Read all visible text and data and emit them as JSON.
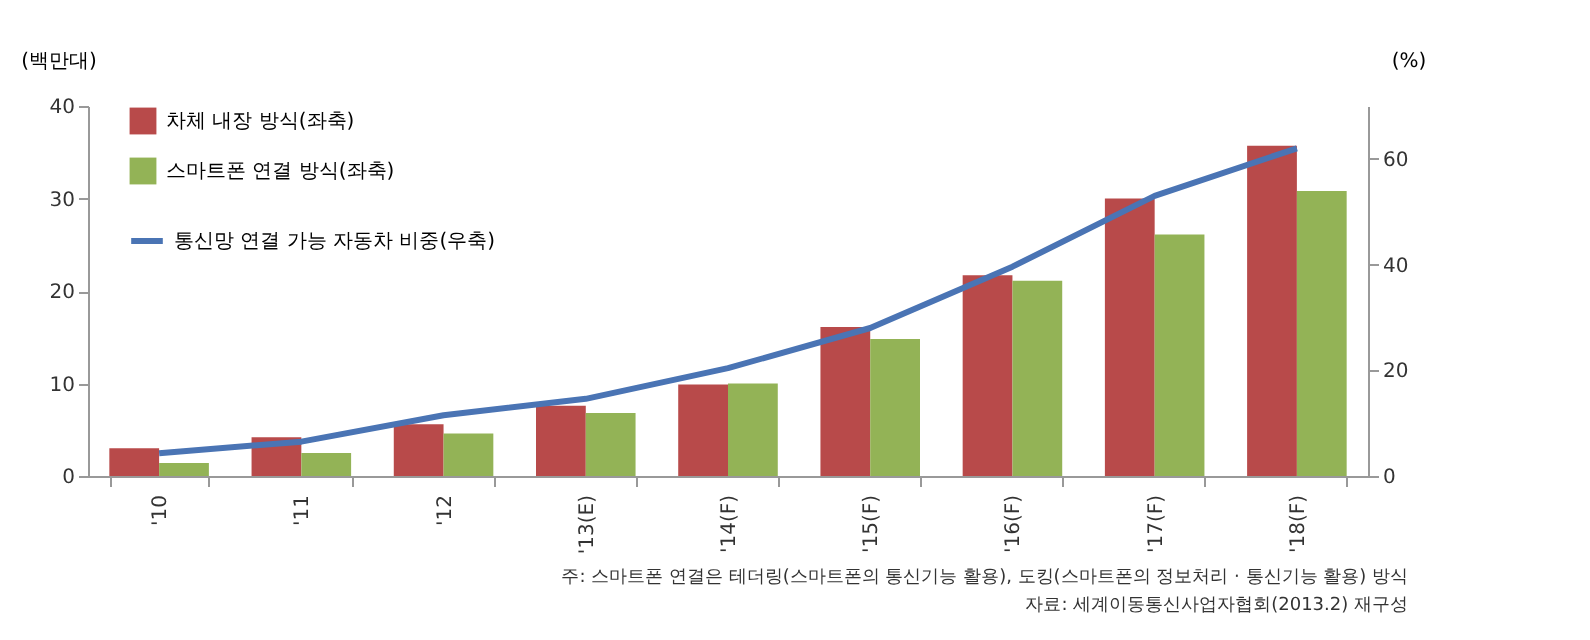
{
  "chart_data": {
    "type": "bar",
    "ylabel": "(백만대)",
    "y2label": "(%)",
    "categories": [
      "'10",
      "'11",
      "'12",
      "'13(E)",
      "'14(F)",
      "'15(F)",
      "'16(F)",
      "'17(F)",
      "'18(F)"
    ],
    "series": [
      {
        "name": "차체 내장 방식(좌축)",
        "color": "#b84a4a",
        "values": [
          3.0,
          4.2,
          5.6,
          7.6,
          9.9,
          16.1,
          21.7,
          30.0,
          35.7
        ]
      },
      {
        "name": "스마트폰 연결 방식(좌축)",
        "color": "#93b356",
        "values": [
          1.4,
          2.5,
          4.6,
          6.8,
          10.0,
          14.8,
          21.1,
          26.1,
          30.8
        ]
      },
      {
        "name": "통신망 연결 가능 자동차 비중(우축)",
        "color": "#4a74b4",
        "type": "line",
        "axis": "y2",
        "values": [
          4.3,
          6.5,
          11.5,
          14.6,
          20.4,
          28,
          39.6,
          53,
          62
        ]
      }
    ],
    "ylim": [
      0,
      40
    ],
    "yticks": [
      0,
      10,
      20,
      30,
      40
    ],
    "y2lim": [
      0,
      70
    ],
    "y2ticks": [
      0,
      20,
      40,
      60
    ],
    "grid": false,
    "legend": "top left",
    "marker": "none",
    "line_style": "solid",
    "annotations": [
      "주: 스마트폰 연결은 테더링(스마트폰의 통신기능 활용), 도킹(스마트폰의 정보처리 · 통신기능 활용) 방식",
      "자료: 세계이동통신사업자협회(2013.2) 재구성"
    ]
  }
}
